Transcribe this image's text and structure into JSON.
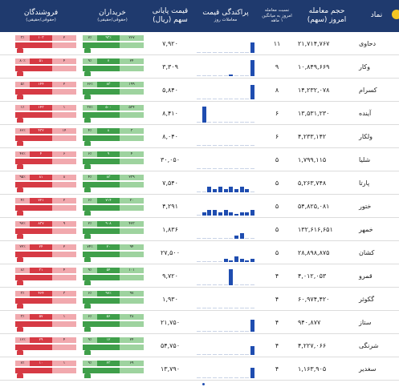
{
  "header": {
    "name": "نماد",
    "volume": "حجم معامله",
    "volume_sub": "امروز (سهم)",
    "ratio": "نسبت معامله",
    "ratio_sub": "امروز به میانگین",
    "ratio_sub2": "۱ ماهه",
    "spark": "پراکندگی قیمت",
    "spark_sub": "معاملات روز",
    "price": "قیمت پایانی",
    "price_sub": "سهم (ریال)",
    "buyers": "خریداران",
    "buyers_sub": "(حقوقی/حقیقی)",
    "sellers": "فروشندگان",
    "sellers_sub": "(حقوقی/حقیقی)"
  },
  "colors": {
    "header_bg": "#1f3a6e",
    "buy_dark": "#3f9f4a",
    "buy_light": "#9ed39f",
    "sell_dark": "#d63a44",
    "sell_light": "#f1a9ae",
    "spark_bar": "#1f4db0",
    "accent_dot": "#f3c623"
  },
  "rows": [
    {
      "name": "دحاوی",
      "volume": "۲۱,۷۱۴,۷۶۷",
      "ratio": "۱۱",
      "price": "۷,۹۲۰",
      "spark": [
        0,
        0,
        0,
        0,
        0,
        0,
        0,
        0,
        0,
        0,
        6
      ],
      "buy": [
        "۷٪",
        "۹۳٪",
        "۲۶۷"
      ],
      "sell": [
        "۳٪",
        "۱۰۳",
        "۲"
      ]
    },
    {
      "name": "وکار",
      "volume": "۱۰,۸۴۹,۶۶۹",
      "ratio": "۹",
      "price": "۳,۳۰۹",
      "spark": [
        0,
        0,
        0,
        0,
        0,
        0,
        1,
        0,
        0,
        0,
        9
      ],
      "buy": [
        "۹٪",
        "۷",
        "۲۴"
      ],
      "sell": [
        "۸۰٪",
        "۵۱",
        "۴"
      ]
    },
    {
      "name": "کسرام",
      "volume": "۱۴,۲۳۲,۰۷۸",
      "ratio": "۸",
      "price": "۵,۸۴۰",
      "spark": [
        0,
        0,
        0,
        0,
        0,
        0,
        0,
        0,
        0,
        0,
        8
      ],
      "buy": [
        "۶۶٪",
        "۸۳",
        "۱۹۹"
      ],
      "sell": [
        "۵٪",
        "۱۴۴",
        "۲"
      ]
    },
    {
      "name": "آینده",
      "volume": "۱۳,۵۳۱,۲۳۰",
      "ratio": "۶",
      "price": "۸,۴۱۰",
      "spark": [
        0,
        9,
        0,
        0,
        0,
        0,
        0,
        0,
        0,
        0,
        0
      ],
      "buy": [
        "۳۷٪",
        "۵۰۰",
        "۵۳۴"
      ],
      "sell": [
        "۱٪",
        "۱۴۳",
        "۱"
      ]
    },
    {
      "name": "ولکار",
      "volume": "۴,۲۳۳,۱۴۲",
      "ratio": "۶",
      "price": "۸,۰۴۰",
      "spark": [
        0,
        0,
        0,
        0,
        0,
        0,
        0,
        0,
        0,
        0,
        0
      ],
      "buy": [
        "۴٪",
        "۸",
        "۳"
      ],
      "sell": [
        "۶۶٪",
        "۴۳۲",
        "۱۴"
      ]
    },
    {
      "name": "شلیا",
      "volume": "۱,۷۹۹,۱۱۵",
      "ratio": "۵",
      "price": "۳۰,۰۵۰",
      "spark": [
        0,
        0,
        0,
        0,
        0,
        0,
        0,
        0,
        0,
        0,
        0
      ],
      "buy": [
        "۶٪",
        "۹",
        "۴"
      ],
      "sell": [
        "۴۷٪",
        "۴",
        "۶"
      ]
    },
    {
      "name": "پارتا",
      "volume": "۵,۲۶۳,۷۴۸",
      "ratio": "۵",
      "price": "۷,۵۴۰",
      "spark": [
        0,
        0,
        3,
        2,
        3,
        2,
        3,
        2,
        3,
        2,
        0
      ],
      "buy": [
        "۴٪",
        "۸۳",
        "۲۳۹"
      ],
      "sell": [
        "۹۵٪",
        "۸۱",
        "۸"
      ]
    },
    {
      "name": "ختور",
      "volume": "۵۴,۸۲۵,۰۸۱",
      "ratio": "۵",
      "price": "۴,۲۹۱",
      "spark": [
        0,
        2,
        3,
        3,
        2,
        3,
        2,
        1,
        2,
        2,
        3
      ],
      "buy": [
        "۶٪",
        "۷۱۴",
        "۲۰"
      ],
      "sell": [
        "۴٪",
        "۷۲۱",
        "۲"
      ]
    },
    {
      "name": "خمهر",
      "volume": "۱۳۲,۶۱۶,۶۵۱",
      "ratio": "۵",
      "price": "۱,۸۳۶",
      "spark": [
        0,
        0,
        0,
        0,
        0,
        0,
        0,
        2,
        3,
        0,
        0
      ],
      "buy": [
        "۲٪",
        "۹۰۸",
        "۴۷۳"
      ],
      "sell": [
        "۹۷٪",
        "۸۳۷",
        "۹"
      ]
    },
    {
      "name": "کشان",
      "volume": "۲۸,۸۹۸,۸۷۵",
      "ratio": "۵",
      "price": "۲۷,۵۰۰",
      "spark": [
        0,
        0,
        0,
        0,
        0,
        2,
        1,
        3,
        2,
        1,
        2
      ],
      "buy": [
        "۷۴٪",
        "۲۰",
        "۹۴"
      ],
      "sell": [
        "۲۲٪",
        "۲۴",
        "۲"
      ]
    },
    {
      "name": "قمرو",
      "volume": "۴,۰۱۲,۰۵۳",
      "ratio": "۴",
      "price": "۹,۷۲۰",
      "spark": [
        0,
        0,
        0,
        0,
        0,
        0,
        9,
        0,
        0,
        0,
        0
      ],
      "buy": [
        "۹٪",
        "۵۴",
        "۱۰۱"
      ],
      "sell": [
        "۸٪",
        "۳۱",
        "۴"
      ]
    },
    {
      "name": "گکوثر",
      "volume": "۶۰,۹۷۴,۴۲۰",
      "ratio": "۴",
      "price": "۱,۹۳۰",
      "spark": [
        0,
        0,
        0,
        0,
        0,
        0,
        0,
        0,
        0,
        0,
        0
      ],
      "buy": [
        "۶٪",
        "۹۷٪",
        "۹۷"
      ],
      "sell": [
        "۳٪",
        "۴۶۴",
        "۳"
      ]
    },
    {
      "name": "ستاز",
      "volume": "۹۴۰,۸۷۷",
      "ratio": "۴",
      "price": "۲۱,۷۵۰",
      "spark": [
        0,
        0,
        0,
        0,
        0,
        0,
        0,
        0,
        0,
        0,
        7
      ],
      "buy": [
        "۶٪",
        "۵۶",
        "۳۸"
      ],
      "sell": [
        "۳٪",
        "۵۷",
        "۱"
      ]
    },
    {
      "name": "شرنگی",
      "volume": "۴,۲۲۷,۰۶۶",
      "ratio": "۴",
      "price": "۵۴,۷۵۰",
      "spark": [
        0,
        0,
        0,
        0,
        0,
        0,
        0,
        0,
        0,
        0,
        5
      ],
      "buy": [
        "۹٪",
        "۱۲",
        "۲۴"
      ],
      "sell": [
        "۱۶٪",
        "۲۹",
        "۴"
      ]
    },
    {
      "name": "سغدیر",
      "volume": "۱,۱۶۳,۹۰۵",
      "ratio": "۴",
      "price": "۱۳,۷۹۰",
      "spark": [
        0,
        0,
        0,
        0,
        0,
        0,
        0,
        0,
        0,
        0,
        6
      ],
      "buy": [
        "۹٪",
        "۲۳",
        "۶۹"
      ],
      "sell": [
        "۷٪",
        "۱۰",
        "۱"
      ]
    }
  ]
}
